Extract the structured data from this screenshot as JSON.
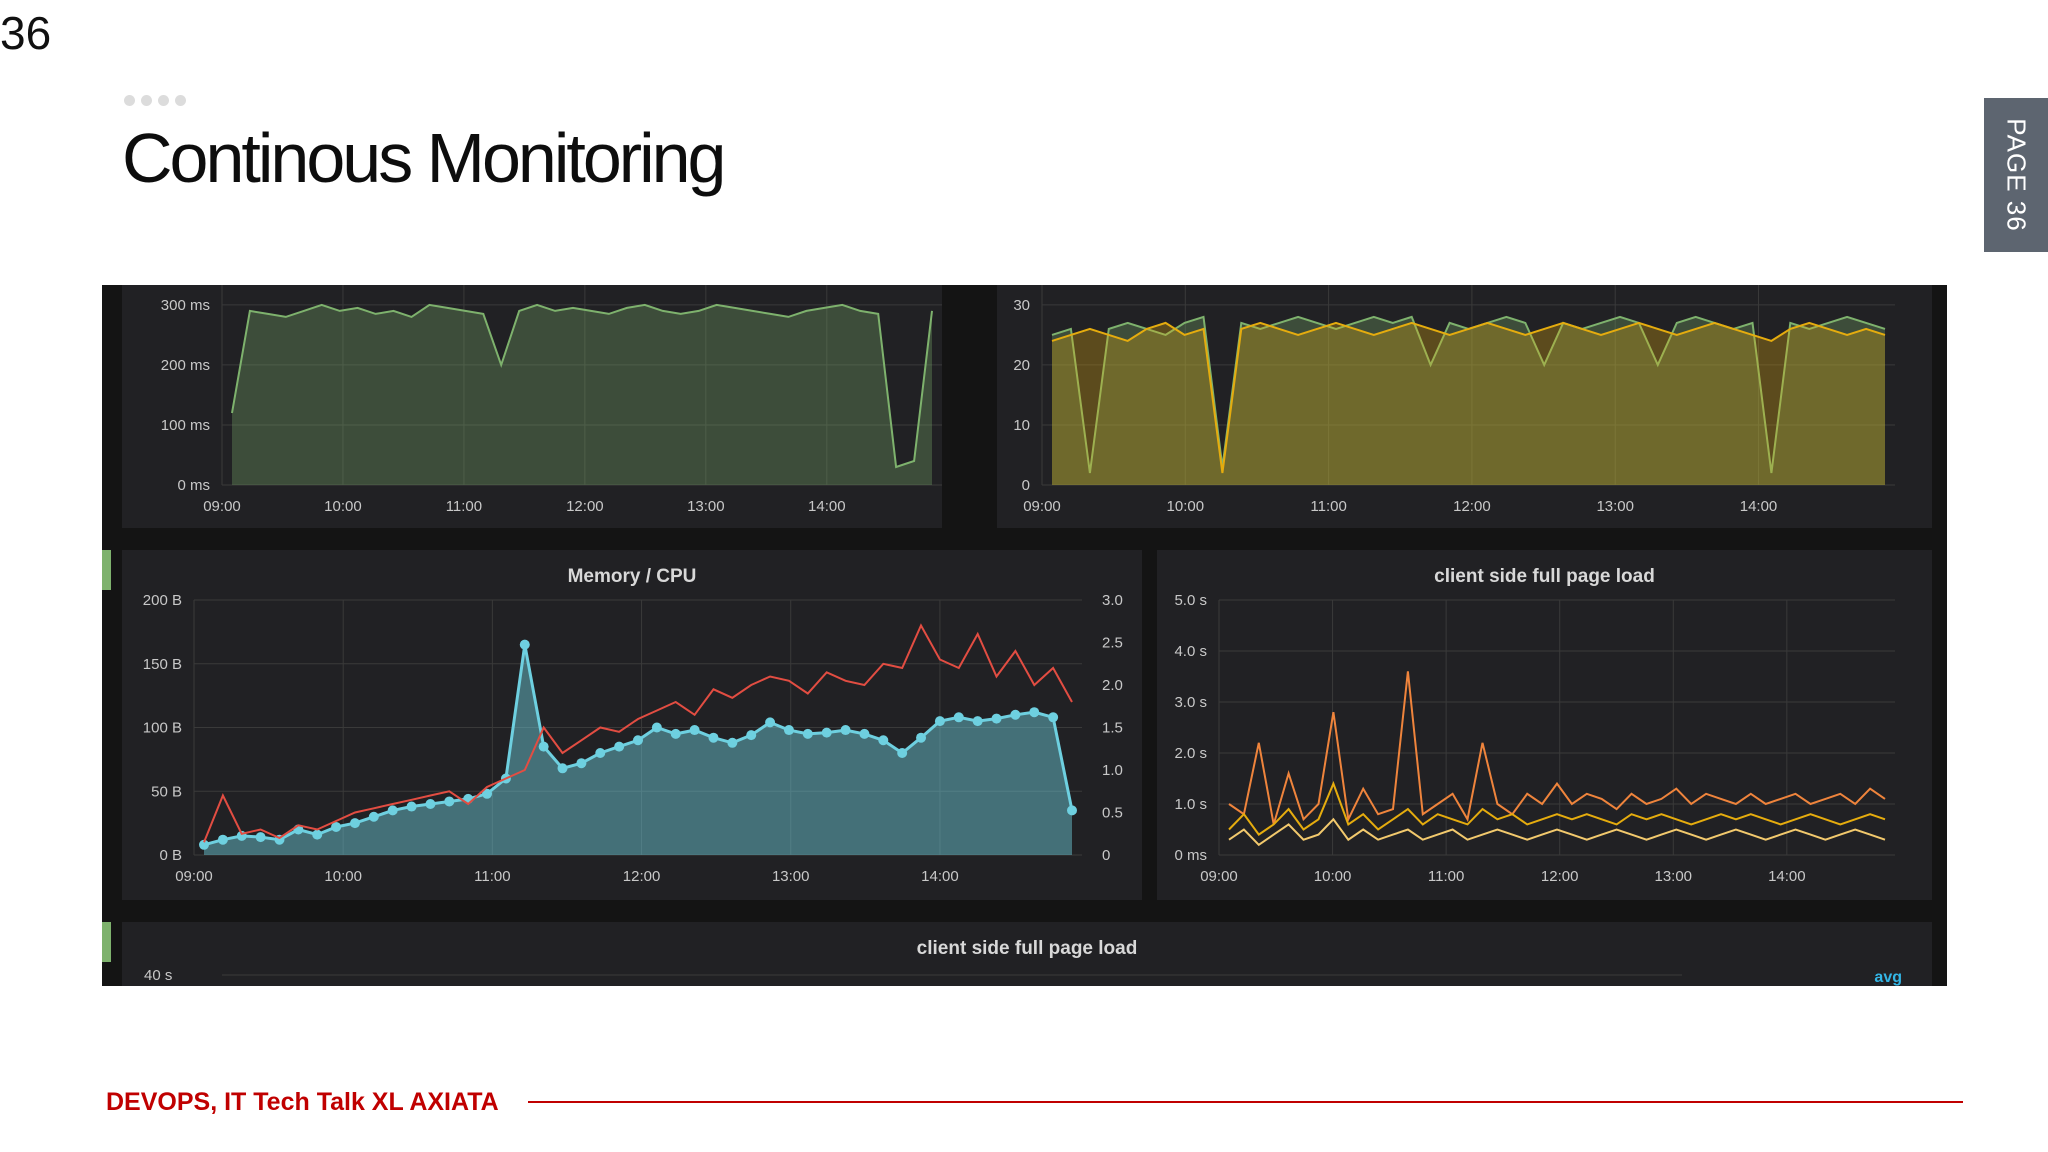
{
  "slide": {
    "page_number": "36",
    "title": "Continous Monitoring",
    "page_tab": "PAGE 36",
    "footer": "DEVOPS, IT Tech Talk XL AXIATA"
  },
  "colors": {
    "panel_bg": "#212124",
    "dashboard_bg": "#141414",
    "green_series": "#7eb26d",
    "yellow_series": "#e5ac0e",
    "red_series": "#e24d42",
    "cyan_series": "#6ed0e0",
    "orange_series": "#ef843c",
    "footer_red": "#c00000"
  },
  "chart_data": [
    {
      "type": "area",
      "title": "",
      "x_ticks": [
        "09:00",
        "10:00",
        "11:00",
        "12:00",
        "13:00",
        "14:00"
      ],
      "y_ticks": [
        "0 ms",
        "100 ms",
        "200 ms",
        "300 ms"
      ],
      "ylim": [
        0,
        330
      ],
      "series": [
        {
          "values": [
            120,
            290,
            285,
            280,
            290,
            300,
            290,
            295,
            285,
            290,
            280,
            300,
            295,
            290,
            285,
            200,
            290,
            300,
            290,
            295,
            290,
            285,
            295,
            300,
            290,
            285,
            290,
            300,
            295,
            290,
            285,
            280,
            290,
            295,
            300,
            290,
            285,
            30,
            40,
            290
          ]
        }
      ]
    },
    {
      "type": "area",
      "title": "",
      "x_ticks": [
        "09:00",
        "10:00",
        "11:00",
        "12:00",
        "13:00",
        "14:00"
      ],
      "y_ticks": [
        "0",
        "10",
        "20",
        "30"
      ],
      "ylim": [
        0,
        33
      ],
      "series": [
        {
          "values": [
            25,
            26,
            2,
            26,
            27,
            26,
            25,
            27,
            28,
            3,
            27,
            26,
            27,
            28,
            27,
            26,
            27,
            28,
            27,
            28,
            20,
            27,
            26,
            27,
            28,
            27,
            20,
            27,
            26,
            27,
            28,
            27,
            20,
            27,
            28,
            27,
            26,
            27,
            2,
            27,
            26,
            27,
            28,
            27,
            26
          ]
        },
        {
          "values": [
            24,
            25,
            26,
            25,
            24,
            26,
            27,
            25,
            26,
            2,
            26,
            27,
            26,
            25,
            26,
            27,
            26,
            25,
            26,
            27,
            26,
            25,
            26,
            27,
            26,
            25,
            26,
            27,
            26,
            25,
            26,
            27,
            26,
            25,
            26,
            27,
            26,
            25,
            24,
            26,
            27,
            26,
            25,
            26,
            25
          ]
        }
      ]
    },
    {
      "type": "line",
      "title": "Memory / CPU",
      "x_ticks": [
        "09:00",
        "10:00",
        "11:00",
        "12:00",
        "13:00",
        "14:00"
      ],
      "y_ticks": [
        "0 B",
        "50 B",
        "100 B",
        "150 B",
        "200 B"
      ],
      "y2_ticks": [
        "0",
        "0.5",
        "1.0",
        "1.5",
        "2.0",
        "2.5",
        "3.0"
      ],
      "ylim": [
        0,
        200
      ],
      "y2lim": [
        0,
        3
      ],
      "series": [
        {
          "values": [
            8,
            12,
            15,
            14,
            12,
            20,
            16,
            22,
            25,
            30,
            35,
            38,
            40,
            42,
            44,
            48,
            60,
            165,
            85,
            68,
            72,
            80,
            85,
            90,
            100,
            95,
            98,
            92,
            88,
            94,
            104,
            98,
            95,
            96,
            98,
            95,
            90,
            80,
            92,
            105,
            108,
            105,
            107,
            110,
            112,
            108,
            35
          ],
          "style": "area-points"
        },
        {
          "values": [
            0.15,
            0.7,
            0.25,
            0.3,
            0.2,
            0.35,
            0.3,
            0.4,
            0.5,
            0.55,
            0.6,
            0.65,
            0.7,
            0.75,
            0.6,
            0.8,
            0.9,
            1.0,
            1.5,
            1.2,
            1.35,
            1.5,
            1.45,
            1.6,
            1.7,
            1.8,
            1.65,
            1.95,
            1.85,
            2.0,
            2.1,
            2.05,
            1.9,
            2.15,
            2.05,
            2.0,
            2.25,
            2.2,
            2.7,
            2.3,
            2.2,
            2.6,
            2.1,
            2.4,
            2.0,
            2.2,
            1.8
          ],
          "style": "line"
        }
      ]
    },
    {
      "type": "line",
      "title": "client side full page load",
      "x_ticks": [
        "09:00",
        "10:00",
        "11:00",
        "12:00",
        "13:00",
        "14:00"
      ],
      "y_ticks": [
        "0 ms",
        "1.0 s",
        "2.0 s",
        "3.0 s",
        "4.0 s",
        "5.0 s"
      ],
      "ylim": [
        0,
        5
      ],
      "series": [
        {
          "values": [
            1.0,
            0.8,
            2.2,
            0.6,
            1.6,
            0.7,
            1.0,
            2.8,
            0.7,
            1.3,
            0.8,
            0.9,
            3.6,
            0.8,
            1.0,
            1.2,
            0.7,
            2.2,
            1.0,
            0.8,
            1.2,
            1.0,
            1.4,
            1.0,
            1.2,
            1.1,
            0.9,
            1.2,
            1.0,
            1.1,
            1.3,
            1.0,
            1.2,
            1.1,
            1.0,
            1.2,
            1.0,
            1.1,
            1.2,
            1.0,
            1.1,
            1.2,
            1.0,
            1.3,
            1.1
          ]
        },
        {
          "values": [
            0.5,
            0.8,
            0.4,
            0.6,
            0.9,
            0.5,
            0.7,
            1.4,
            0.6,
            0.8,
            0.5,
            0.7,
            0.9,
            0.6,
            0.8,
            0.7,
            0.6,
            0.9,
            0.7,
            0.8,
            0.6,
            0.7,
            0.8,
            0.7,
            0.8,
            0.7,
            0.6,
            0.8,
            0.7,
            0.8,
            0.7,
            0.6,
            0.7,
            0.8,
            0.7,
            0.8,
            0.7,
            0.6,
            0.7,
            0.8,
            0.7,
            0.6,
            0.7,
            0.8,
            0.7
          ]
        },
        {
          "values": [
            0.3,
            0.5,
            0.2,
            0.4,
            0.6,
            0.3,
            0.4,
            0.7,
            0.3,
            0.5,
            0.3,
            0.4,
            0.5,
            0.3,
            0.4,
            0.5,
            0.3,
            0.4,
            0.5,
            0.4,
            0.3,
            0.4,
            0.5,
            0.4,
            0.3,
            0.4,
            0.5,
            0.4,
            0.3,
            0.4,
            0.5,
            0.4,
            0.3,
            0.4,
            0.5,
            0.4,
            0.3,
            0.4,
            0.5,
            0.4,
            0.3,
            0.4,
            0.5,
            0.4,
            0.3
          ]
        }
      ]
    },
    {
      "type": "line",
      "title": "client side full page load",
      "y_ticks": [
        "40 s"
      ],
      "legend": [
        "avg"
      ],
      "series": []
    }
  ]
}
